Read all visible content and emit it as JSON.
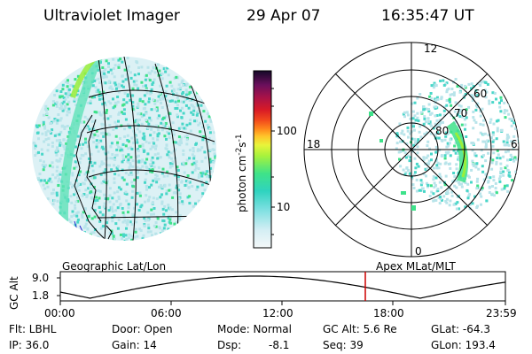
{
  "header": {
    "instrument": "Ultraviolet Imager",
    "date": "29 Apr 07",
    "time": "16:35:47 UT"
  },
  "colorbar": {
    "label": "photon cm",
    "sup1": "-2",
    "s": "s",
    "sup2": "-1",
    "ticks": [
      "100",
      "10"
    ]
  },
  "left_panel": {
    "caption": "Geographic Lat/Lon"
  },
  "right_panel": {
    "caption": "Apex MLat/MLT",
    "mlt_labels": {
      "top": "12",
      "left": "18",
      "right": "6",
      "bottom": "0"
    },
    "lat_labels": [
      "60",
      "70",
      "80"
    ]
  },
  "timeline": {
    "ylabel": "GC Alt",
    "yticks": [
      "9.0",
      "1.8"
    ],
    "xticks": [
      "00:00",
      "06:00",
      "12:00",
      "18:00",
      "23:59"
    ]
  },
  "info": {
    "flt": "Flt: LBHL",
    "ip": "IP: 36.0",
    "door": "Door: Open",
    "gain": "Gain: 14",
    "mode": "Mode: Normal",
    "dsp": "Dsp:",
    "dsp_val": "-8.1",
    "gcalt": "GC Alt: 5.6 Re",
    "seq": "Seq: 39",
    "glat": "GLat: -64.3",
    "glon": "GLon: 193.4"
  },
  "colors": {
    "bg_data": "#d8eff4",
    "faint": "#b8e4ea",
    "cyan": "#48d6c8",
    "green": "#3ee28a",
    "lime": "#9aef3a",
    "marker": "#cc0000"
  }
}
